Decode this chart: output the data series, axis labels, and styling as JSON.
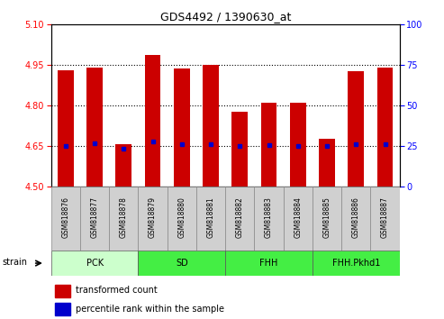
{
  "title": "GDS4492 / 1390630_at",
  "samples": [
    "GSM818876",
    "GSM818877",
    "GSM818878",
    "GSM818879",
    "GSM818880",
    "GSM818881",
    "GSM818882",
    "GSM818883",
    "GSM818884",
    "GSM818885",
    "GSM818886",
    "GSM818887"
  ],
  "transformed_counts": [
    4.93,
    4.94,
    4.655,
    4.985,
    4.935,
    4.95,
    4.775,
    4.81,
    4.81,
    4.675,
    4.925,
    4.94
  ],
  "percentile_ranks_left": [
    4.65,
    4.66,
    4.64,
    4.665,
    4.655,
    4.655,
    4.65,
    4.652,
    4.65,
    4.65,
    4.655,
    4.658
  ],
  "ylim_left": [
    4.5,
    5.1
  ],
  "ylim_right": [
    0,
    100
  ],
  "yticks_left": [
    4.5,
    4.65,
    4.8,
    4.95,
    5.1
  ],
  "yticks_right": [
    0,
    25,
    50,
    75,
    100
  ],
  "hlines": [
    4.65,
    4.8,
    4.95
  ],
  "groups": [
    {
      "label": "PCK",
      "start": 0,
      "end": 2,
      "color": "#ccffcc"
    },
    {
      "label": "SD",
      "start": 3,
      "end": 5,
      "color": "#44ee44"
    },
    {
      "label": "FHH",
      "start": 6,
      "end": 8,
      "color": "#44ee44"
    },
    {
      "label": "FHH.Pkhd1",
      "start": 9,
      "end": 11,
      "color": "#44ee44"
    }
  ],
  "bar_color": "#cc0000",
  "dot_color": "#0000cc",
  "bar_width": 0.55,
  "sample_bg": "#d0d0d0",
  "legend_bar_label": "transformed count",
  "legend_dot_label": "percentile rank within the sample",
  "strain_label": "strain"
}
